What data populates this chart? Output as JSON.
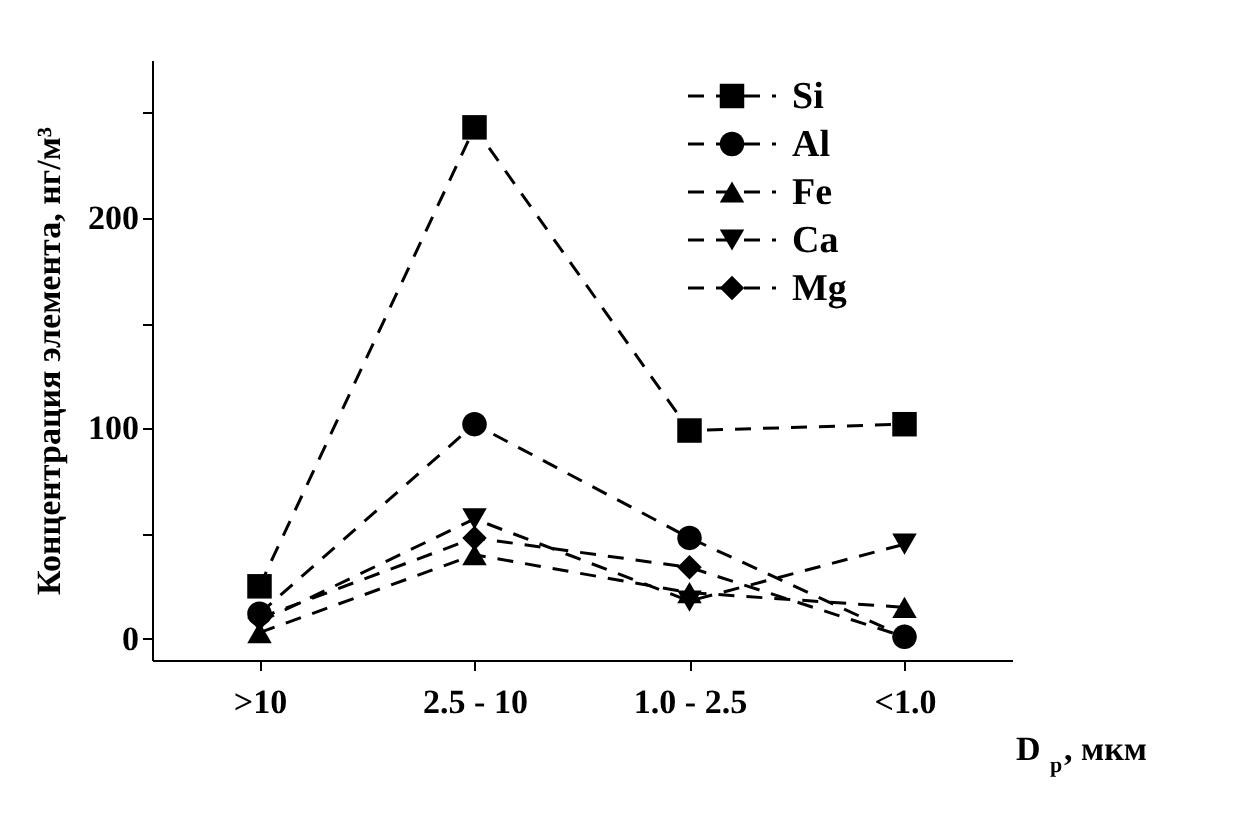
{
  "chart_data": {
    "type": "line",
    "xlabel": "D$_{p}$, мкм",
    "ylabel": "Концентрация элемента, нг/м³",
    "categories": [
      ">10",
      "2.5 - 10",
      "1.0 - 2.5",
      "<1.0"
    ],
    "series": [
      {
        "name": "Si",
        "color": "#000000",
        "marker": "square",
        "values": [
          25,
          243,
          99,
          102
        ]
      },
      {
        "name": "Al",
        "color": "#000000",
        "marker": "circle",
        "values": [
          12,
          102,
          48,
          1
        ]
      },
      {
        "name": "Fe",
        "color": "#000000",
        "marker": "triangle",
        "values": [
          3,
          40,
          22,
          15
        ]
      },
      {
        "name": "Ca",
        "color": "#000000",
        "marker": "triangle-down",
        "values": [
          8,
          57,
          18,
          45
        ]
      },
      {
        "name": "Mg",
        "color": "#000000",
        "marker": "diamond",
        "values": [
          10,
          48,
          34,
          1
        ]
      }
    ],
    "ylim": [
      -10,
      275
    ],
    "yticks": [
      0,
      {
        "value": 50,
        "label": null
      },
      100,
      {
        "value": 150,
        "label": null
      },
      200,
      {
        "value": 250,
        "label": null
      }
    ],
    "line_style": "dashed",
    "legend": "top right",
    "grid": false
  }
}
